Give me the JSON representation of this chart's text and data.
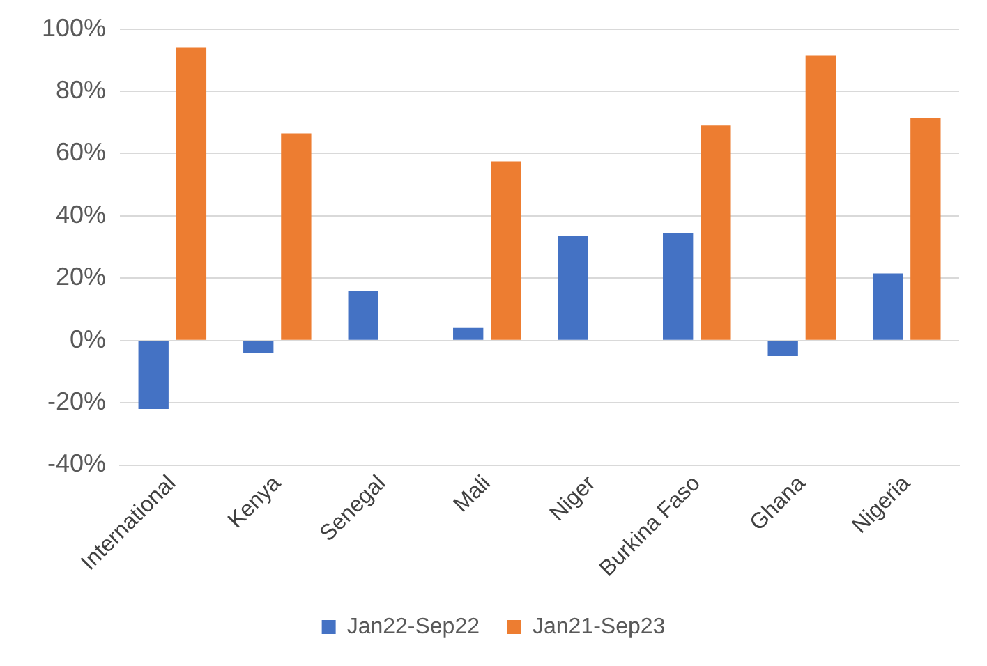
{
  "chart_data": {
    "type": "bar",
    "categories": [
      "International",
      "Kenya",
      "Senegal",
      "Mali",
      "Niger",
      "Burkina Faso",
      "Ghana",
      "Nigeria"
    ],
    "series": [
      {
        "name": "Jan22-Sep22",
        "color": "#4472c4",
        "values": [
          -22,
          -4,
          16,
          4,
          33.5,
          34.5,
          -5,
          21.5
        ]
      },
      {
        "name": "Jan21-Sep23",
        "color": "#ed7d31",
        "values": [
          94,
          66.5,
          null,
          57.5,
          null,
          69,
          91.5,
          71.5
        ]
      }
    ],
    "ylim": [
      -40,
      100
    ],
    "yticks": [
      {
        "value": -40,
        "label": "-40%"
      },
      {
        "value": -20,
        "label": "-20%"
      },
      {
        "value": 0,
        "label": "0%"
      },
      {
        "value": 20,
        "label": "20%"
      },
      {
        "value": 40,
        "label": "40%"
      },
      {
        "value": 60,
        "label": "60%"
      },
      {
        "value": 80,
        "label": "80%"
      },
      {
        "value": 100,
        "label": "100%"
      }
    ],
    "grid": "y",
    "legend": "bottom"
  }
}
